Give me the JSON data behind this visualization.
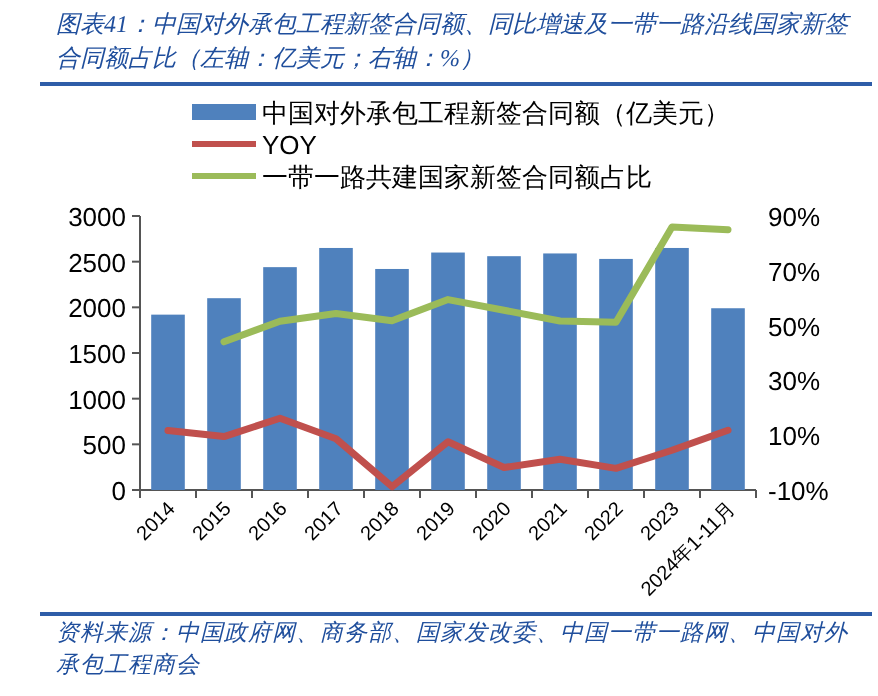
{
  "chart_data": {
    "type": "bar",
    "title": "图表41：中国对外承包工程新签合同额、同比增速及一带一路沿线国家新签合同额占比（左轴：亿美元；右轴：%）",
    "categories": [
      "2014",
      "2015",
      "2016",
      "2017",
      "2018",
      "2019",
      "2020",
      "2021",
      "2022",
      "2023",
      "2024年1-11月"
    ],
    "series": [
      {
        "name": "中国对外承包工程新签合同额（亿美元）",
        "color": "#4f81bd",
        "values": [
          1920,
          2100,
          2440,
          2650,
          2420,
          2600,
          2560,
          2590,
          2530,
          2650,
          1990
        ]
      },
      {
        "name": "YOY",
        "type": "line",
        "axis": "y2",
        "color": "#c0504d",
        "values": [
          11.7,
          9.5,
          16.2,
          8.7,
          -8.8,
          7.6,
          -1.8,
          1.2,
          -2.1,
          4.5,
          11.8
        ]
      },
      {
        "name": "一带一路共建国家新签合同额占比",
        "type": "line",
        "axis": "y2",
        "color": "#9bbb59",
        "values": [
          null,
          44.1,
          51.6,
          54.4,
          51.8,
          59.5,
          55.6,
          51.7,
          51.2,
          86.0,
          85.0
        ]
      }
    ],
    "ylim": [
      0,
      3000
    ],
    "yticks": [
      0,
      500,
      1000,
      1500,
      2000,
      2500,
      3000
    ],
    "y2lim": [
      -10,
      90
    ],
    "y2ticks": [
      {
        "value": -10,
        "label": "-10%"
      },
      {
        "value": 10,
        "label": "10%"
      },
      {
        "value": 30,
        "label": "30%"
      },
      {
        "value": 50,
        "label": "50%"
      },
      {
        "value": 70,
        "label": "70%"
      },
      {
        "value": 90,
        "label": "90%"
      }
    ],
    "legend": "top",
    "grid": false,
    "annotations": [
      "资料来源：中国政府网、商务部、国家发改委、中国一带一路网、中国对外承包工程商会"
    ]
  }
}
